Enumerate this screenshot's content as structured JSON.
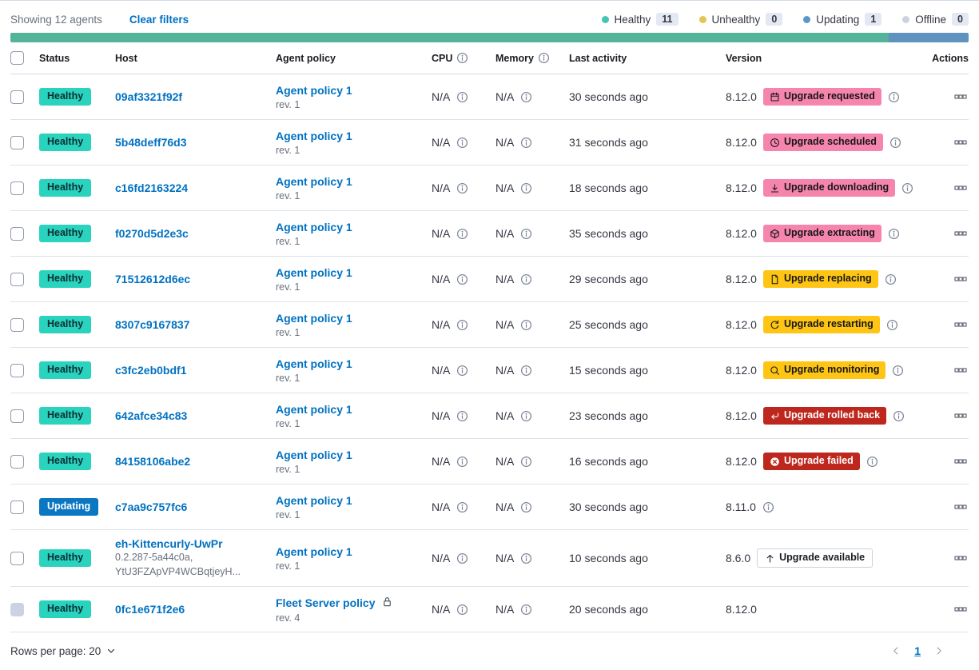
{
  "toolbar": {
    "showing": "Showing 12 agents",
    "clear_filters": "Clear filters"
  },
  "legend": {
    "items": [
      {
        "label": "Healthy",
        "count": "11",
        "color": "#45C5AE"
      },
      {
        "label": "Unhealthy",
        "count": "0",
        "color": "#E5C453"
      },
      {
        "label": "Updating",
        "count": "1",
        "color": "#5A96C8"
      },
      {
        "label": "Offline",
        "count": "0",
        "color": "#CBD3DF"
      }
    ]
  },
  "health_bar": {
    "total": 12,
    "segments": [
      {
        "status": "healthy",
        "value": 11,
        "color": "#54B399"
      },
      {
        "status": "updating",
        "value": 1,
        "color": "#6092C0"
      }
    ]
  },
  "table": {
    "columns": [
      {
        "label": "Status"
      },
      {
        "label": "Host"
      },
      {
        "label": "Agent policy"
      },
      {
        "label": "CPU",
        "info": true
      },
      {
        "label": "Memory",
        "info": true
      },
      {
        "label": "Last activity"
      },
      {
        "label": "Version"
      },
      {
        "label": "Actions"
      }
    ],
    "rows": [
      {
        "status": "Healthy",
        "status_variant": "healthy",
        "host": "09af3321f92f",
        "host_sub": [],
        "policy": "Agent policy 1",
        "policy_rev": "rev. 1",
        "policy_locked": false,
        "cpu": "N/A",
        "memory": "N/A",
        "last_activity": "30 seconds ago",
        "version": "8.12.0",
        "upgrade": {
          "label": "Upgrade requested",
          "variant": "pink",
          "icon": "calendar"
        },
        "version_info": true,
        "checkbox_disabled": false
      },
      {
        "status": "Healthy",
        "status_variant": "healthy",
        "host": "5b48deff76d3",
        "host_sub": [],
        "policy": "Agent policy 1",
        "policy_rev": "rev. 1",
        "policy_locked": false,
        "cpu": "N/A",
        "memory": "N/A",
        "last_activity": "31 seconds ago",
        "version": "8.12.0",
        "upgrade": {
          "label": "Upgrade scheduled",
          "variant": "pink",
          "icon": "clock"
        },
        "version_info": true,
        "checkbox_disabled": false
      },
      {
        "status": "Healthy",
        "status_variant": "healthy",
        "host": "c16fd2163224",
        "host_sub": [],
        "policy": "Agent policy 1",
        "policy_rev": "rev. 1",
        "policy_locked": false,
        "cpu": "N/A",
        "memory": "N/A",
        "last_activity": "18 seconds ago",
        "version": "8.12.0",
        "upgrade": {
          "label": "Upgrade downloading",
          "variant": "pink",
          "icon": "download"
        },
        "version_info": true,
        "checkbox_disabled": false
      },
      {
        "status": "Healthy",
        "status_variant": "healthy",
        "host": "f0270d5d2e3c",
        "host_sub": [],
        "policy": "Agent policy 1",
        "policy_rev": "rev. 1",
        "policy_locked": false,
        "cpu": "N/A",
        "memory": "N/A",
        "last_activity": "35 seconds ago",
        "version": "8.12.0",
        "upgrade": {
          "label": "Upgrade extracting",
          "variant": "pink",
          "icon": "package"
        },
        "version_info": true,
        "checkbox_disabled": false
      },
      {
        "status": "Healthy",
        "status_variant": "healthy",
        "host": "71512612d6ec",
        "host_sub": [],
        "policy": "Agent policy 1",
        "policy_rev": "rev. 1",
        "policy_locked": false,
        "cpu": "N/A",
        "memory": "N/A",
        "last_activity": "29 seconds ago",
        "version": "8.12.0",
        "upgrade": {
          "label": "Upgrade replacing",
          "variant": "yellow",
          "icon": "document"
        },
        "version_info": true,
        "checkbox_disabled": false
      },
      {
        "status": "Healthy",
        "status_variant": "healthy",
        "host": "8307c9167837",
        "host_sub": [],
        "policy": "Agent policy 1",
        "policy_rev": "rev. 1",
        "policy_locked": false,
        "cpu": "N/A",
        "memory": "N/A",
        "last_activity": "25 seconds ago",
        "version": "8.12.0",
        "upgrade": {
          "label": "Upgrade restarting",
          "variant": "yellow",
          "icon": "refresh"
        },
        "version_info": true,
        "checkbox_disabled": false
      },
      {
        "status": "Healthy",
        "status_variant": "healthy",
        "host": "c3fc2eb0bdf1",
        "host_sub": [],
        "policy": "Agent policy 1",
        "policy_rev": "rev. 1",
        "policy_locked": false,
        "cpu": "N/A",
        "memory": "N/A",
        "last_activity": "15 seconds ago",
        "version": "8.12.0",
        "upgrade": {
          "label": "Upgrade monitoring",
          "variant": "yellow",
          "icon": "inspect"
        },
        "version_info": true,
        "checkbox_disabled": false
      },
      {
        "status": "Healthy",
        "status_variant": "healthy",
        "host": "642afce34c83",
        "host_sub": [],
        "policy": "Agent policy 1",
        "policy_rev": "rev. 1",
        "policy_locked": false,
        "cpu": "N/A",
        "memory": "N/A",
        "last_activity": "23 seconds ago",
        "version": "8.12.0",
        "upgrade": {
          "label": "Upgrade rolled back",
          "variant": "red",
          "icon": "return"
        },
        "version_info": true,
        "checkbox_disabled": false
      },
      {
        "status": "Healthy",
        "status_variant": "healthy",
        "host": "84158106abe2",
        "host_sub": [],
        "policy": "Agent policy 1",
        "policy_rev": "rev. 1",
        "policy_locked": false,
        "cpu": "N/A",
        "memory": "N/A",
        "last_activity": "16 seconds ago",
        "version": "8.12.0",
        "upgrade": {
          "label": "Upgrade failed",
          "variant": "red",
          "icon": "error"
        },
        "version_info": true,
        "checkbox_disabled": false
      },
      {
        "status": "Updating",
        "status_variant": "updating",
        "host": "c7aa9c757fc6",
        "host_sub": [],
        "policy": "Agent policy 1",
        "policy_rev": "rev. 1",
        "policy_locked": false,
        "cpu": "N/A",
        "memory": "N/A",
        "last_activity": "30 seconds ago",
        "version": "8.11.0",
        "upgrade": null,
        "version_info": true,
        "checkbox_disabled": false
      },
      {
        "status": "Healthy",
        "status_variant": "healthy",
        "host": "eh-Kittencurly-UwPr",
        "host_sub": [
          "0.2.287-5a44c0a,",
          "YtU3FZApVP4WCBqtjeyH..."
        ],
        "policy": "Agent policy 1",
        "policy_rev": "rev. 1",
        "policy_locked": false,
        "cpu": "N/A",
        "memory": "N/A",
        "last_activity": "10 seconds ago",
        "version": "8.6.0",
        "upgrade": {
          "label": "Upgrade available",
          "variant": "hollow",
          "icon": "arrow-up"
        },
        "version_info": false,
        "checkbox_disabled": false
      },
      {
        "status": "Healthy",
        "status_variant": "healthy",
        "host": "0fc1e671f2e6",
        "host_sub": [],
        "policy": "Fleet Server policy",
        "policy_rev": "rev. 4",
        "policy_locked": true,
        "cpu": "N/A",
        "memory": "N/A",
        "last_activity": "20 seconds ago",
        "version": "8.12.0",
        "upgrade": null,
        "version_info": false,
        "checkbox_disabled": true
      }
    ]
  },
  "footer": {
    "rows_per_page": "Rows per page: 20",
    "page": "1"
  },
  "colors": {
    "healthy_badge": "#2AD3BD",
    "updating_badge": "#0B77C2",
    "upgrade_pink": "#F685AE",
    "upgrade_yellow": "#FEC514",
    "upgrade_red": "#BD271E",
    "link": "#0071C2",
    "bar_healthy": "#54B399",
    "bar_updating": "#6092C0"
  }
}
